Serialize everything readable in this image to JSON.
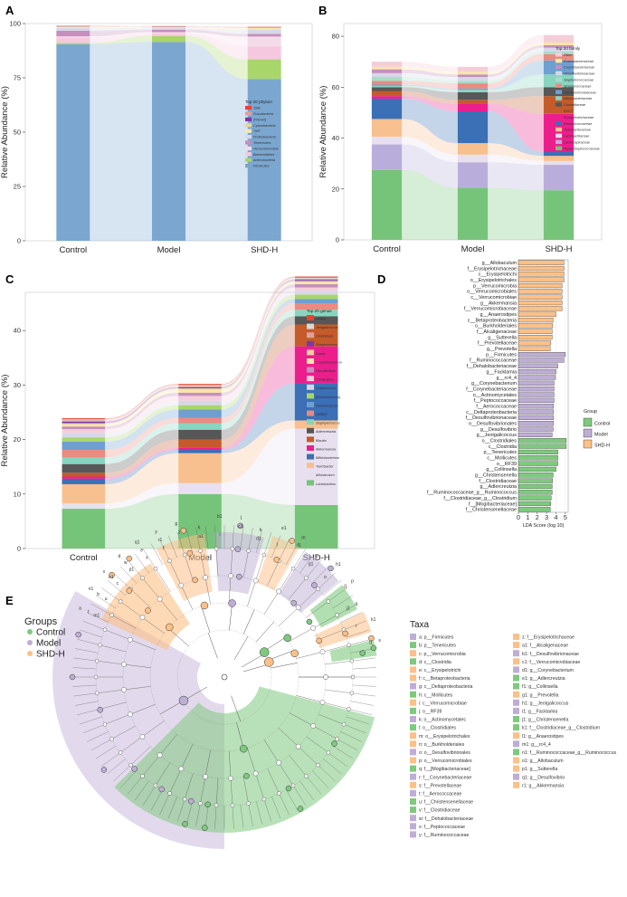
{
  "chart_data": [
    {
      "panel": "A",
      "type": "area",
      "ylabel": "Relative Abundance (%)",
      "categories": [
        "Control",
        "Model",
        "SHD-H"
      ],
      "yticks": [
        0,
        25,
        50,
        75,
        100
      ],
      "ylim": [
        0,
        100
      ],
      "legend_title": "Top 20 phylum",
      "series": [
        {
          "name": "Firmicutes",
          "color": "#7ba6cf",
          "values": [
            90.5,
            91.5,
            74.5
          ]
        },
        {
          "name": "Actinobacteria",
          "color": "#a8d66a",
          "values": [
            0.6,
            2.8,
            9.0
          ]
        },
        {
          "name": "Bacteroidetes",
          "color": "#f6c8df",
          "values": [
            2.5,
            1.2,
            6.0
          ]
        },
        {
          "name": "Verrucomicrobia",
          "color": "#f4dbe8",
          "values": [
            0.5,
            0.5,
            4.5
          ]
        },
        {
          "name": "Tenericutes",
          "color": "#c58fbe",
          "values": [
            2.6,
            1.2,
            1.2
          ]
        },
        {
          "name": "Proteobacteria",
          "color": "#d8d8e8",
          "values": [
            1.3,
            0.8,
            2.0
          ]
        },
        {
          "name": "TM7",
          "color": "#f7e9a8",
          "values": [
            0.4,
            0.3,
            0.7
          ]
        },
        {
          "name": "Cyanobacteria",
          "color": "#ead3a0",
          "values": [
            0.3,
            0.2,
            0.3
          ]
        },
        {
          "name": "[Thermi]",
          "color": "#7a39a8",
          "values": [
            0.1,
            0.1,
            0.1
          ]
        },
        {
          "name": "Fusobacteria",
          "color": "#e0a0a0",
          "values": [
            0.1,
            0.1,
            0.1
          ]
        },
        {
          "name": "TM6",
          "color": "#e8432e",
          "values": [
            0.1,
            0.1,
            0.1
          ]
        }
      ]
    },
    {
      "panel": "B",
      "type": "area",
      "ylabel": "Relative Abundance (%)",
      "categories": [
        "Control",
        "Model",
        "SHD-H"
      ],
      "yticks": [
        0,
        20,
        40,
        60,
        80
      ],
      "ylim": [
        0,
        85
      ],
      "legend_title": "Top 20 family",
      "series": [
        {
          "name": "Peptostreptococcaceae",
          "color": "#76c47a",
          "values": [
            27.5,
            20.5,
            19.5
          ]
        },
        {
          "name": "Lachnospiraceae",
          "color": "#b9aedb",
          "values": [
            10.0,
            10.0,
            10.0
          ]
        },
        {
          "name": "Lactobacillaceae",
          "color": "#e8e0ef",
          "values": [
            3.0,
            3.0,
            1.5
          ]
        },
        {
          "name": "Turicibacteraceae",
          "color": "#f7c08e",
          "values": [
            7.0,
            4.5,
            2.0
          ]
        },
        {
          "name": "Ruminococcaceae",
          "color": "#3b6fb6",
          "values": [
            8.0,
            12.5,
            1.5
          ]
        },
        {
          "name": "Erysipelotrichaceae",
          "color": "#ec1e8c",
          "values": [
            1.0,
            3.0,
            15.0
          ]
        },
        {
          "name": "S24-7",
          "color": "#c55a2b",
          "values": [
            2.0,
            1.5,
            7.0
          ]
        },
        {
          "name": "Clostridiaceae",
          "color": "#575757",
          "values": [
            1.5,
            3.0,
            3.5
          ]
        },
        {
          "name": "Bifidobacteriaceae",
          "color": "#88d4c0",
          "values": [
            0.5,
            1.0,
            5.0
          ]
        },
        {
          "name": "Verrucomicrobiaceae",
          "color": "#6e9fd0",
          "values": [
            0.5,
            0.5,
            5.5
          ]
        },
        {
          "name": "Streptococcaceae",
          "color": "#ea8a80",
          "values": [
            1.5,
            2.0,
            2.5
          ]
        },
        {
          "name": "Staphylococcaceae",
          "color": "#a7dcc8",
          "values": [
            1.5,
            1.0,
            1.0
          ]
        },
        {
          "name": "Desulfovibrionaceae",
          "color": "#d7d7e9",
          "values": [
            1.5,
            1.5,
            1.5
          ]
        },
        {
          "name": "Corynebacteriaceae",
          "color": "#c58fbe",
          "values": [
            1.5,
            1.0,
            1.0
          ]
        },
        {
          "name": "Enterobacteriaceae",
          "color": "#fbe7a3",
          "values": [
            1.0,
            1.0,
            1.0
          ]
        },
        {
          "name": "Other",
          "color": "#f4cdd9",
          "values": [
            2.0,
            2.0,
            3.0
          ]
        }
      ]
    },
    {
      "panel": "C",
      "type": "area",
      "ylabel": "Relative Abundance (%)",
      "categories": [
        "Control",
        "Model",
        "SHD-H"
      ],
      "yticks": [
        0,
        10,
        20,
        30,
        40
      ],
      "ylim": [
        0,
        47
      ],
      "legend_title": "Top 20 genus",
      "series": [
        {
          "name": "Lactobacillus",
          "color": "#76c47a",
          "values": [
            7.3,
            10.0,
            8.0
          ]
        },
        {
          "name": "Allobaculum",
          "color": "#e8e0ef",
          "values": [
            1.0,
            2.0,
            14.0
          ]
        },
        {
          "name": "Turicibacter",
          "color": "#f7c08e",
          "values": [
            3.5,
            5.5,
            1.5
          ]
        },
        {
          "name": "Bifidobacterium",
          "color": "#3b6fb6",
          "values": [
            1.0,
            0.6,
            6.8
          ]
        },
        {
          "name": "Akkermansia",
          "color": "#ec1e8c",
          "values": [
            0.4,
            0.4,
            6.8
          ]
        },
        {
          "name": "Blautia",
          "color": "#c55a2b",
          "values": [
            0.7,
            1.5,
            4.0
          ]
        },
        {
          "name": "Adlercreutzia",
          "color": "#575757",
          "values": [
            1.6,
            1.8,
            1.5
          ]
        },
        {
          "name": "Staphylococcus",
          "color": "#88d4c0",
          "values": [
            1.2,
            1.2,
            1.2
          ]
        },
        {
          "name": "SMB53",
          "color": "#ea8a80",
          "values": [
            1.4,
            1.0,
            1.2
          ]
        },
        {
          "name": "Ruminococcus",
          "color": "#6e9fd0",
          "values": [
            1.5,
            1.5,
            0.8
          ]
        },
        {
          "name": "[Ruminococcus]",
          "color": "#a8d66a",
          "values": [
            0.8,
            0.8,
            0.8
          ]
        },
        {
          "name": "Coprococcus",
          "color": "#d7d7e9",
          "values": [
            0.8,
            0.8,
            0.7
          ]
        },
        {
          "name": "Oscillospira",
          "color": "#f4cdd9",
          "values": [
            0.7,
            0.9,
            0.6
          ]
        },
        {
          "name": "Desulfovibrio",
          "color": "#c58fbe",
          "values": [
            0.5,
            0.6,
            0.6
          ]
        },
        {
          "name": "Corynebacterium",
          "color": "#fbe7a3",
          "values": [
            0.3,
            0.5,
            0.3
          ]
        },
        {
          "name": "Dorea",
          "color": "#ead3a0",
          "values": [
            0.3,
            0.3,
            0.3
          ]
        },
        {
          "name": "Streptococcus",
          "color": "#7a39a8",
          "values": [
            0.3,
            0.2,
            0.2
          ]
        },
        {
          "name": "Clostridium",
          "color": "#e0a0a0",
          "values": [
            0.2,
            0.2,
            0.2
          ]
        },
        {
          "name": "Jeotgalicoccus",
          "color": "#d8d8d8",
          "values": [
            0.2,
            0.2,
            0.2
          ]
        },
        {
          "name": "Hothia",
          "color": "#e8432e",
          "values": [
            0.2,
            0.2,
            0.2
          ]
        }
      ]
    },
    {
      "panel": "D",
      "type": "bar",
      "xlabel": "LDA Score (log 10)",
      "xticks": [
        0,
        1,
        2,
        3,
        4,
        5
      ],
      "xlim": [
        0,
        5.3
      ],
      "legend_title": "Group",
      "groups": [
        {
          "name": "Control",
          "color": "#7fc97f"
        },
        {
          "name": "Model",
          "color": "#beaed4"
        },
        {
          "name": "SHD-H",
          "color": "#fdc086"
        }
      ],
      "bars": [
        {
          "label": "g__Allobaculum",
          "group": "SHD-H",
          "value": 4.85
        },
        {
          "label": "f__Erysipelotrichaceae",
          "group": "SHD-H",
          "value": 4.85
        },
        {
          "label": "c__Erysipelotrichi",
          "group": "SHD-H",
          "value": 4.85
        },
        {
          "label": "o__Erysipelotrichales",
          "group": "SHD-H",
          "value": 4.85
        },
        {
          "label": "p__Verrucomicrobia",
          "group": "SHD-H",
          "value": 4.65
        },
        {
          "label": "o__Verrucomicrobiales",
          "group": "SHD-H",
          "value": 4.65
        },
        {
          "label": "c__Verrucomicrobiae",
          "group": "SHD-H",
          "value": 4.65
        },
        {
          "label": "g__Akkermansia",
          "group": "SHD-H",
          "value": 4.65
        },
        {
          "label": "f__Verrucomicrobiaceae",
          "group": "SHD-H",
          "value": 4.65
        },
        {
          "label": "g__Anaerostipes",
          "group": "SHD-H",
          "value": 4.0
        },
        {
          "label": "c__Betaproteobacteria",
          "group": "SHD-H",
          "value": 3.7
        },
        {
          "label": "o__Burkholderiales",
          "group": "SHD-H",
          "value": 3.65
        },
        {
          "label": "f__Alcaligenaceae",
          "group": "SHD-H",
          "value": 3.6
        },
        {
          "label": "g__Sutterella",
          "group": "SHD-H",
          "value": 3.6
        },
        {
          "label": "f__Prevotellaceae",
          "group": "SHD-H",
          "value": 3.45
        },
        {
          "label": "g__Prevotella",
          "group": "SHD-H",
          "value": 3.4
        },
        {
          "label": "p__Firmicutes",
          "group": "Model",
          "value": 5.0
        },
        {
          "label": "f__Ruminococcaceae",
          "group": "Model",
          "value": 4.85
        },
        {
          "label": "f__Dehalobacteriaceae",
          "group": "Model",
          "value": 4.2
        },
        {
          "label": "g__Facklamia",
          "group": "Model",
          "value": 4.0
        },
        {
          "label": "g__rc4_4",
          "group": "Model",
          "value": 3.95
        },
        {
          "label": "g__Corynebacterium",
          "group": "Model",
          "value": 3.8
        },
        {
          "label": "f__Corynebacteriaceae",
          "group": "Model",
          "value": 3.8
        },
        {
          "label": "o__Actinomycetales",
          "group": "Model",
          "value": 3.8
        },
        {
          "label": "f__Peptococcaceae",
          "group": "Model",
          "value": 3.8
        },
        {
          "label": "f__Aerococcaceae",
          "group": "Model",
          "value": 3.75
        },
        {
          "label": "c__Deltaproteobacteria",
          "group": "Model",
          "value": 3.75
        },
        {
          "label": "f__Desulfovibrionaceae",
          "group": "Model",
          "value": 3.75
        },
        {
          "label": "o__Desulfovibrionales",
          "group": "Model",
          "value": 3.75
        },
        {
          "label": "g__Desulfovibrio",
          "group": "Model",
          "value": 3.7
        },
        {
          "label": "g__Jeotgalicoccus",
          "group": "Model",
          "value": 3.6
        },
        {
          "label": "o__Clostridiales",
          "group": "Control",
          "value": 5.1
        },
        {
          "label": "c__Clostridia",
          "group": "Control",
          "value": 5.1
        },
        {
          "label": "p__Tenericutes",
          "group": "Control",
          "value": 4.2
        },
        {
          "label": "c__Mollicutes",
          "group": "Control",
          "value": 4.2
        },
        {
          "label": "o__RF39",
          "group": "Control",
          "value": 4.2
        },
        {
          "label": "g__Collinsella",
          "group": "Control",
          "value": 4.0
        },
        {
          "label": "g__Christensenella",
          "group": "Control",
          "value": 3.7
        },
        {
          "label": "f__Clostridiaceae",
          "group": "Control",
          "value": 3.65
        },
        {
          "label": "g__Adlercreutzia",
          "group": "Control",
          "value": 3.6
        },
        {
          "label": "f__Ruminococcaceae_g__Ruminococcus",
          "group": "Control",
          "value": 3.6
        },
        {
          "label": "f__Clostridiaceae_g__Clostridium",
          "group": "Control",
          "value": 3.5
        },
        {
          "label": "f__[Mogibacteriaceae]",
          "group": "Control",
          "value": 3.45
        },
        {
          "label": "f__Christensenellaceae",
          "group": "Control",
          "value": 3.4
        }
      ]
    }
  ],
  "panels": {
    "a": "A",
    "b": "B",
    "c": "C",
    "d": "D",
    "e": "E"
  },
  "cladogram": {
    "groups_title": "Groups",
    "groups": [
      {
        "name": "Control",
        "color": "#7fc97f"
      },
      {
        "name": "Model",
        "color": "#beaed4"
      },
      {
        "name": "SHD-H",
        "color": "#fdc086"
      }
    ],
    "taxa_title": "Taxa",
    "node_letters": [
      "a",
      "b",
      "c",
      "d",
      "e",
      "f",
      "g",
      "h",
      "i",
      "j",
      "k",
      "l",
      "m",
      "n",
      "o",
      "p",
      "q",
      "r",
      "s",
      "t",
      "u",
      "v",
      "w",
      "x",
      "y",
      "z",
      "a1",
      "b1",
      "c1",
      "d1",
      "e1",
      "f1",
      "g1",
      "h1",
      "i1",
      "j1",
      "k1",
      "l1",
      "m1",
      "n1",
      "o1",
      "p1",
      "q1",
      "r1"
    ],
    "taxa": [
      {
        "text": "a: p__Firmicutes",
        "group": "Model"
      },
      {
        "text": "b: p__Tenericutes",
        "group": "Control"
      },
      {
        "text": "c: p__Verrucomicrobia",
        "group": "SHD-H"
      },
      {
        "text": "d: c__Clostridia",
        "group": "Control"
      },
      {
        "text": "e: c__Erysipelotrichi",
        "group": "SHD-H"
      },
      {
        "text": "f: c__Betaproteobacteria",
        "group": "SHD-H"
      },
      {
        "text": "g: c__Deltaproteobacteria",
        "group": "Model"
      },
      {
        "text": "h: c__Mollicutes",
        "group": "Control"
      },
      {
        "text": "i: c__Verrucomicrobiae",
        "group": "SHD-H"
      },
      {
        "text": "j: o__RF39",
        "group": "Control"
      },
      {
        "text": "k: o__Actinomycetales",
        "group": "Model"
      },
      {
        "text": "l: o__Clostridiales",
        "group": "Control"
      },
      {
        "text": "m: o__Erysipelotrichales",
        "group": "SHD-H"
      },
      {
        "text": "n: o__Burkholderiales",
        "group": "SHD-H"
      },
      {
        "text": "o: o__Desulfovibrionales",
        "group": "Model"
      },
      {
        "text": "p: o__Verrucomicrobiales",
        "group": "SHD-H"
      },
      {
        "text": "q: f__[Mogibacteriaceae]",
        "group": "Control"
      },
      {
        "text": "r: f__Corynebacteriaceae",
        "group": "Model"
      },
      {
        "text": "s: f__Prevotellaceae",
        "group": "SHD-H"
      },
      {
        "text": "t: f__Aerococcaceae",
        "group": "Model"
      },
      {
        "text": "u: f__Christensenellaceae",
        "group": "Control"
      },
      {
        "text": "v: f__Clostridiaceae",
        "group": "Control"
      },
      {
        "text": "w: f__Dehalobacteriaceae",
        "group": "Model"
      },
      {
        "text": "x: f__Peptococcaceae",
        "group": "Model"
      },
      {
        "text": "y: f__Ruminococcaceae",
        "group": "Model"
      },
      {
        "text": "z: f__Erysipelotrichaceae",
        "group": "SHD-H"
      },
      {
        "text": "a1: f__Alcaligenaceae",
        "group": "SHD-H"
      },
      {
        "text": "b1: f__Desulfovibrionaceae",
        "group": "Model"
      },
      {
        "text": "c1: f__Verrucomicrobiaceae",
        "group": "SHD-H"
      },
      {
        "text": "d1: g__Corynebacterium",
        "group": "Model"
      },
      {
        "text": "e1: g__Adlercreutzia",
        "group": "Control"
      },
      {
        "text": "f1: g__Collinsella",
        "group": "Control"
      },
      {
        "text": "g1: g__Prevotella",
        "group": "SHD-H"
      },
      {
        "text": "h1: g__Jeotgalicoccus",
        "group": "Model"
      },
      {
        "text": "i1: g__Facklamia",
        "group": "Model"
      },
      {
        "text": "j1: g__Christensenella",
        "group": "Control"
      },
      {
        "text": "k1: f__Clostridiaceae_g__Clostridium",
        "group": "Control"
      },
      {
        "text": "l1: g__Anaerostipes",
        "group": "SHD-H"
      },
      {
        "text": "m1: g__rc4_4",
        "group": "Model"
      },
      {
        "text": "n1: f__Ruminococcaceae_g__Ruminococcus",
        "group": "Control"
      },
      {
        "text": "o1: g__Allobaculum",
        "group": "SHD-H"
      },
      {
        "text": "p1: g__Sutterella",
        "group": "SHD-H"
      },
      {
        "text": "q1: g__Desulfovibrio",
        "group": "Model"
      },
      {
        "text": "r1: g__Akkermansia",
        "group": "SHD-H"
      }
    ]
  }
}
